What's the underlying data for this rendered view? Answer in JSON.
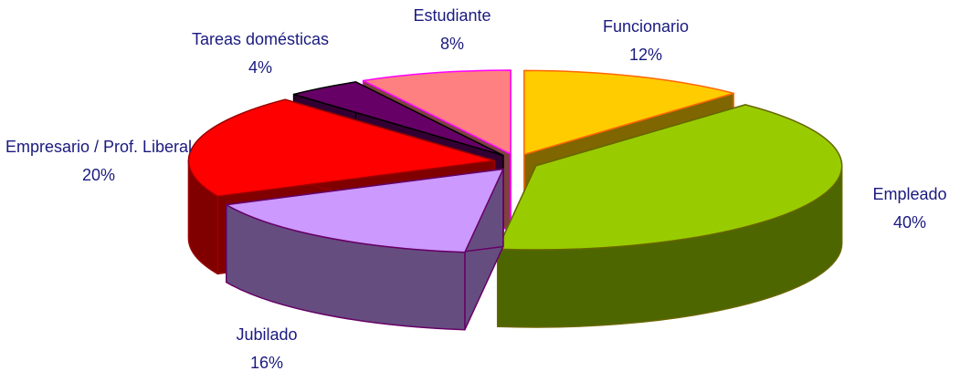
{
  "chart_data": {
    "type": "pie",
    "categories": [
      "Funcionario",
      "Empleado",
      "Jubilado",
      "Empresario / Prof. Liberal",
      "Tareas domésticas",
      "Estudiante"
    ],
    "values": [
      12,
      40,
      16,
      20,
      4,
      8
    ],
    "value_labels": [
      "12%",
      "40%",
      "16%",
      "20%",
      "4%",
      "8%"
    ],
    "colors": [
      "#ffcc00",
      "#99cc00",
      "#cc99ff",
      "#ff0000",
      "#660066",
      "#ff8080"
    ],
    "edge_colors": [
      "#ff6600",
      "#666600",
      "#660066",
      "#990000",
      "#000000",
      "#ff00ff"
    ],
    "three_d": true,
    "exploded": true
  }
}
